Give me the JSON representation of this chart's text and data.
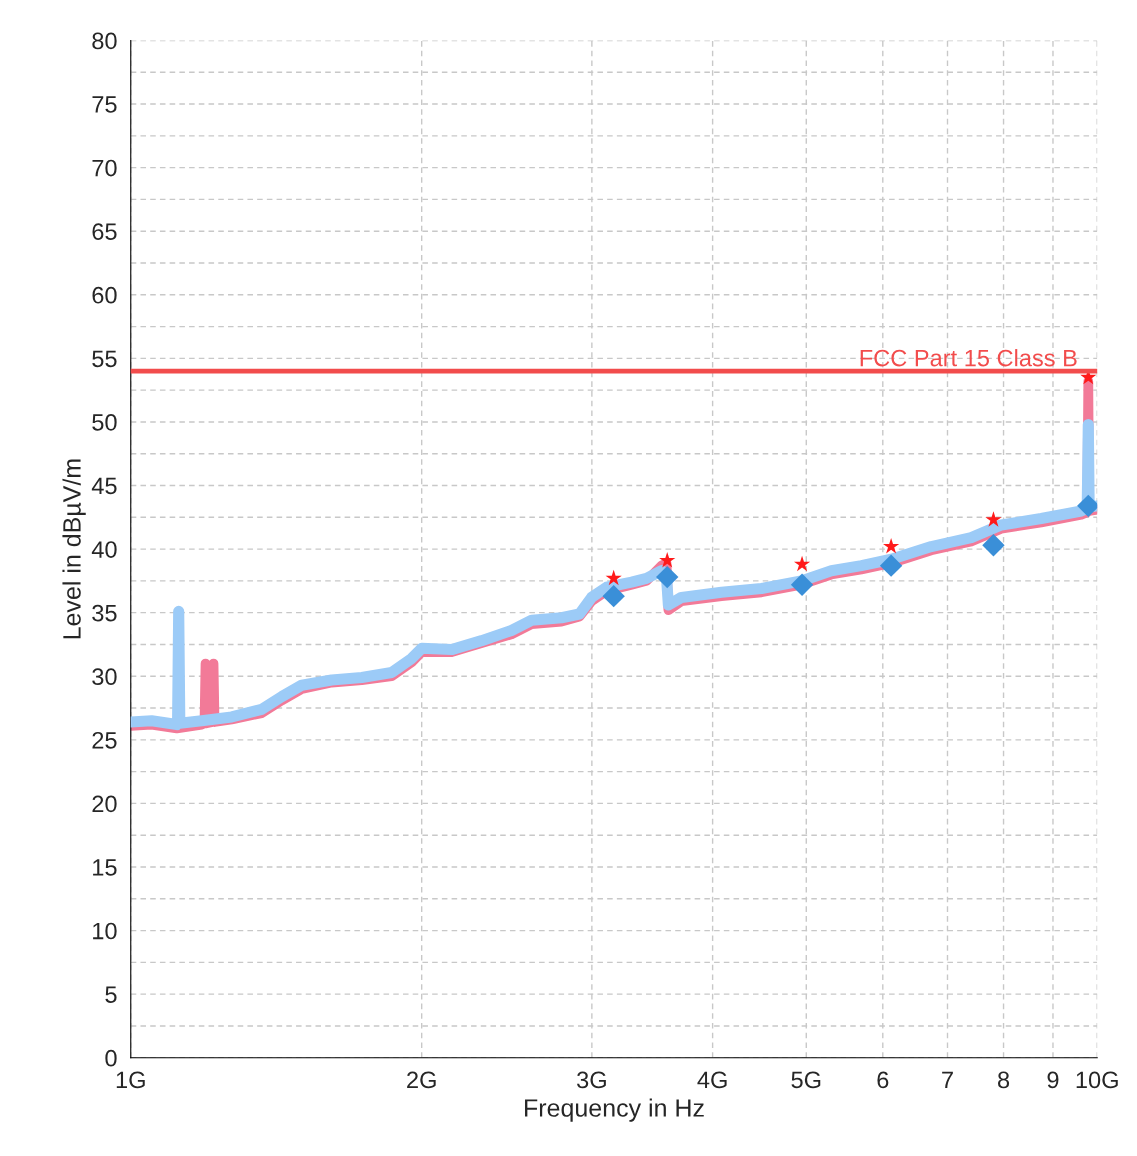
{
  "chart_data": {
    "type": "line",
    "xlabel": "Frequency in Hz",
    "ylabel": "Level in dBµV/m",
    "log": "x",
    "grid": true,
    "legend": false,
    "xlim": [
      1,
      10
    ],
    "xticks": [
      {
        "value": 1,
        "label": "1G"
      },
      {
        "value": 2,
        "label": "2G"
      },
      {
        "value": 3,
        "label": "3G"
      },
      {
        "value": 4,
        "label": "4G"
      },
      {
        "value": 5,
        "label": "5G"
      },
      6,
      7,
      8,
      9,
      {
        "value": 10,
        "label": "10G"
      }
    ],
    "ylim": [
      0,
      80
    ],
    "yticks": [
      0,
      {
        "value": 2.5,
        "label": null
      },
      5,
      {
        "value": 7.5,
        "label": null
      },
      10,
      {
        "value": 12.5,
        "label": null
      },
      15,
      {
        "value": 17.5,
        "label": null
      },
      20,
      {
        "value": 22.5,
        "label": null
      },
      25,
      {
        "value": 27.5,
        "label": null
      },
      30,
      {
        "value": 32.5,
        "label": null
      },
      35,
      {
        "value": 37.5,
        "label": null
      },
      40,
      {
        "value": 42.5,
        "label": null
      },
      45,
      {
        "value": 47.5,
        "label": null
      },
      50,
      {
        "value": 52.5,
        "label": null
      },
      55,
      {
        "value": 57.5,
        "label": null
      },
      60,
      {
        "value": 62.5,
        "label": null
      },
      65,
      {
        "value": 67.5,
        "label": null
      },
      70,
      {
        "value": 72.5,
        "label": null
      },
      75,
      {
        "value": 77.5,
        "label": null
      },
      80
    ],
    "ref_lines": [
      {
        "axis": "y",
        "value": 54,
        "label": "FCC Part 15 Class B",
        "color": "#f24c4c"
      }
    ],
    "series": [
      {
        "color": "#f27a98",
        "x": [
          1,
          1.051,
          1.116,
          1.184,
          1.192,
          1.195,
          1.198,
          1.215,
          1.218,
          1.221,
          1.272,
          1.366,
          1.433,
          1.503,
          1.614,
          1.734,
          1.862,
          1.953,
          2.0,
          2.148,
          2.307,
          2.477,
          2.599,
          2.791,
          2.913,
          2.998,
          3.107,
          3.298,
          3.417,
          3.541,
          3.584,
          3.6,
          3.714,
          4.086,
          4.494,
          4.942,
          5.307,
          5.702,
          6.124,
          6.735,
          7.407,
          7.956,
          8.752,
          9.627,
          9.765,
          9.79,
          9.81,
          10
        ],
        "values": [
          26.1,
          26.2,
          25.9,
          26.2,
          26.3,
          31.0,
          26.3,
          26.4,
          31.0,
          26.4,
          26.6,
          27.1,
          28.1,
          29.0,
          29.5,
          29.7,
          30.0,
          31.1,
          31.9,
          31.9,
          32.6,
          33.3,
          34.1,
          34.3,
          34.7,
          35.9,
          36.7,
          37.2,
          37.5,
          38.7,
          38.9,
          35.2,
          35.9,
          36.3,
          36.6,
          37.2,
          38.0,
          38.4,
          38.9,
          39.9,
          40.6,
          41.6,
          42.1,
          42.7,
          42.9,
          53.2,
          43.0,
          43.1
        ]
      },
      {
        "color": "#9ccbf7",
        "x": [
          1,
          1.051,
          1.116,
          1.118,
          1.121,
          1.124,
          1.184,
          1.272,
          1.366,
          1.433,
          1.503,
          1.614,
          1.734,
          1.862,
          1.953,
          2.0,
          2.148,
          2.307,
          2.477,
          2.599,
          2.791,
          2.913,
          2.998,
          3.107,
          3.298,
          3.417,
          3.541,
          3.584,
          3.6,
          3.714,
          4.086,
          4.494,
          4.942,
          5.307,
          5.702,
          6.124,
          6.735,
          7.407,
          7.956,
          8.752,
          9.627,
          9.765,
          9.79,
          9.81,
          10
        ],
        "values": [
          26.4,
          26.5,
          26.2,
          26.3,
          35.1,
          26.3,
          26.5,
          26.8,
          27.4,
          28.4,
          29.3,
          29.7,
          29.9,
          30.3,
          31.4,
          32.2,
          32.1,
          32.8,
          33.6,
          34.4,
          34.6,
          34.9,
          36.2,
          37.0,
          37.4,
          37.7,
          38.3,
          37.8,
          35.6,
          36.2,
          36.6,
          36.9,
          37.5,
          38.3,
          38.7,
          39.2,
          40.2,
          40.9,
          41.9,
          42.4,
          43.0,
          43.2,
          49.8,
          43.3,
          43.4
        ]
      },
      {
        "type": "scatter",
        "marker": "diamond",
        "color": "#3a8fd8",
        "x": [
          3.16,
          3.59,
          4.95,
          6.12,
          7.81,
          9.79
        ],
        "values": [
          36.3,
          37.8,
          37.2,
          38.7,
          40.3,
          43.4
        ]
      },
      {
        "type": "scatter",
        "marker": "star",
        "color": "#ff1a1a",
        "x": [
          3.16,
          3.59,
          4.95,
          6.12,
          7.81,
          9.79
        ],
        "values": [
          37.7,
          39.1,
          38.8,
          40.2,
          42.3,
          53.5
        ]
      }
    ]
  }
}
